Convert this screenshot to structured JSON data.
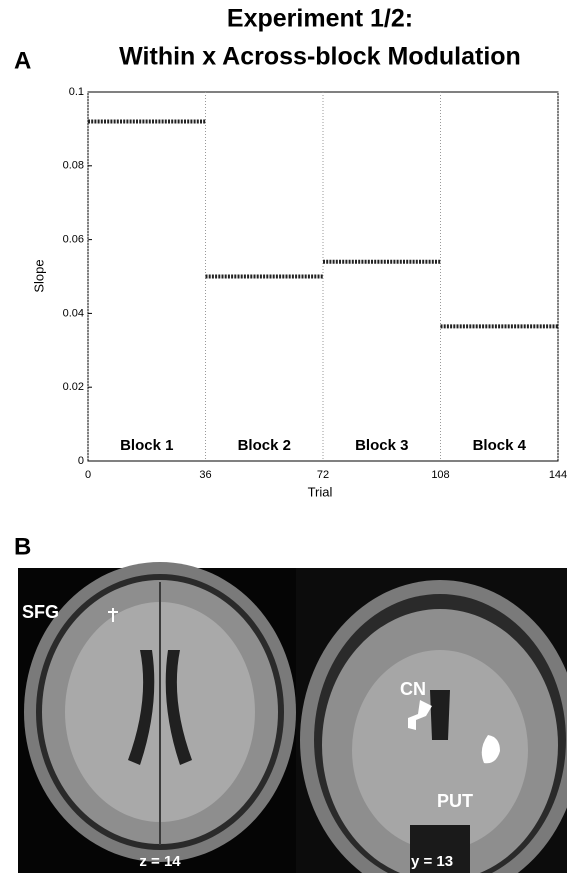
{
  "chart_data": {
    "type": "segments",
    "panel_label": "A",
    "title": "Experiment 1/2:",
    "subtitle": "Within x Across-block Modulation",
    "x_label": "Trial",
    "y_label": "Slope",
    "xlim": [
      0,
      144
    ],
    "xticks": [
      0,
      36,
      72,
      108,
      144
    ],
    "ylim": [
      0,
      0.1
    ],
    "yticks": [
      0,
      0.02,
      0.04,
      0.06,
      0.08,
      0.1
    ],
    "grid": true,
    "color": "#222222",
    "blocks": [
      {
        "label": "Block 1",
        "start": 0,
        "end": 36,
        "value": 0.092
      },
      {
        "label": "Block 2",
        "start": 36,
        "end": 72,
        "value": 0.05
      },
      {
        "label": "Block 3",
        "start": 72,
        "end": 108,
        "value": 0.054
      },
      {
        "label": "Block 4",
        "start": 108,
        "end": 144,
        "value": 0.0365
      }
    ]
  },
  "panel_b": {
    "panel_label": "B",
    "left_label": "SFG",
    "left_caption": "z = 14",
    "right_labels": [
      "CN",
      "PUT"
    ],
    "right_caption": "y = 13"
  }
}
